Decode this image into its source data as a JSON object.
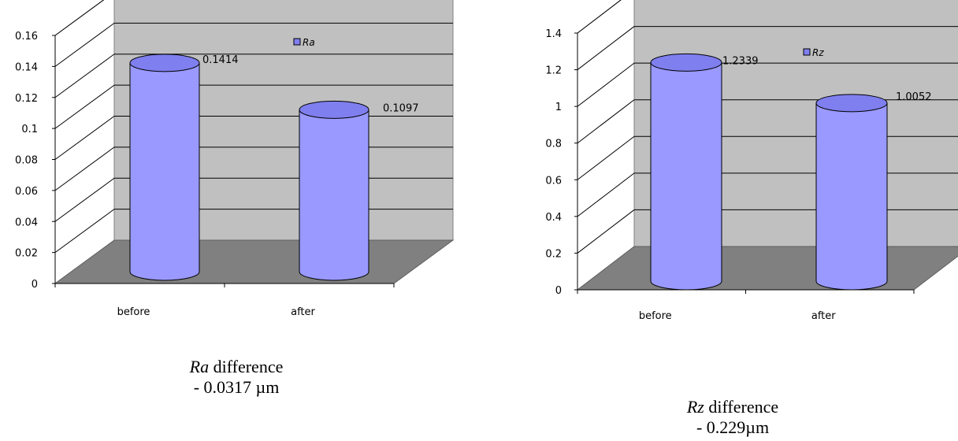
{
  "chart_data": [
    {
      "type": "bar",
      "style": "3d-cylinder",
      "categories": [
        "before",
        "after"
      ],
      "series": [
        {
          "name": "Ra",
          "values": [
            0.1414,
            0.1097
          ]
        }
      ],
      "data_labels": [
        "0.1414",
        "0.1097"
      ],
      "yticks": [
        "0",
        "0.02",
        "0.04",
        "0.06",
        "0.08",
        "0.1",
        "0.12",
        "0.14",
        "0.16"
      ],
      "ylim": [
        0,
        0.16
      ],
      "grid": true,
      "legend": "top-right",
      "caption": {
        "var": "Ra",
        "text": " difference",
        "line2": "- 0.0317 µm"
      },
      "colors": {
        "bar": "#9999ff",
        "bar_top": "#7f7fef",
        "wall": "#c0c0c0",
        "floor": "#808080"
      }
    },
    {
      "type": "bar",
      "style": "3d-cylinder",
      "categories": [
        "before",
        "after"
      ],
      "series": [
        {
          "name": "Rz",
          "values": [
            1.2339,
            1.0052
          ]
        }
      ],
      "data_labels": [
        "1.2339",
        "1.0052"
      ],
      "yticks": [
        "0",
        "0.2",
        "0.4",
        "0.6",
        "0.8",
        "1",
        "1.2",
        "1.4"
      ],
      "ylim": [
        0,
        1.4
      ],
      "grid": true,
      "legend": "top-right",
      "caption": {
        "var": "Rz",
        "text": " difference",
        "line2": "- 0.229µm"
      },
      "colors": {
        "bar": "#9999ff",
        "bar_top": "#7f7fef",
        "wall": "#c0c0c0",
        "floor": "#808080"
      }
    }
  ]
}
